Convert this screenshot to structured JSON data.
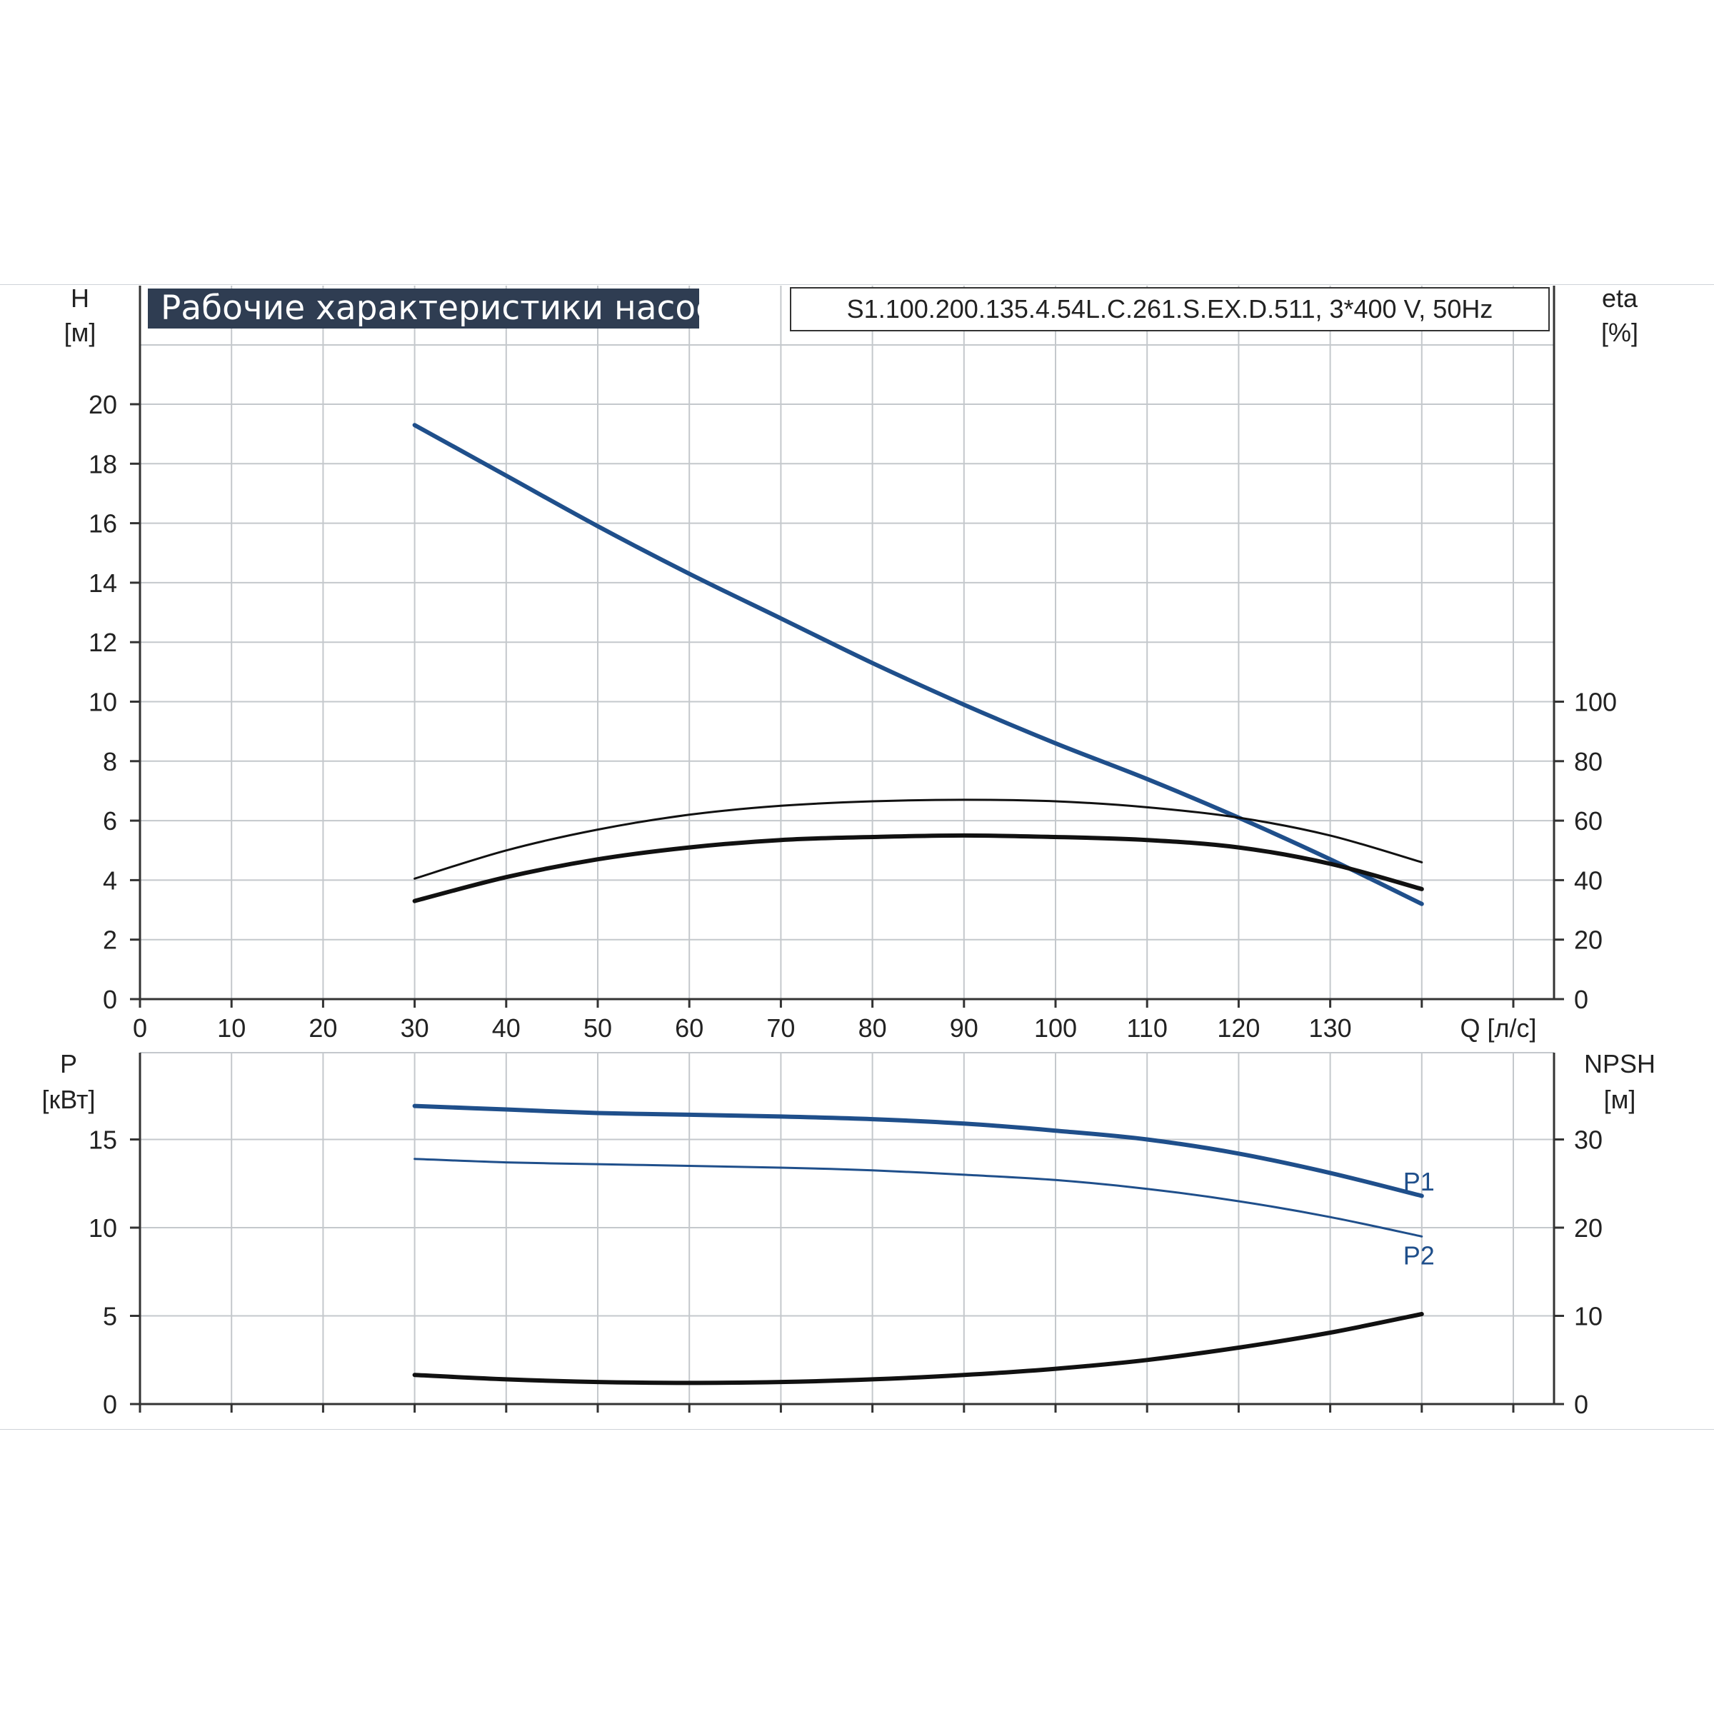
{
  "title": "Рабочие характеристики насоса",
  "model": "S1.100.200.135.4.54L.C.261.S.EX.D.511, 3*400 V, 50Hz",
  "colors": {
    "blue": "#1f4f8b",
    "black": "#111111",
    "grid": "#c4c8cc",
    "title_bg": "#2f3d52"
  },
  "chart_data": [
    {
      "type": "line",
      "name": "upper",
      "y_left_label": [
        "H",
        "[м]"
      ],
      "y_right_label": [
        "eta",
        "[%]"
      ],
      "x_label": "Q [л/с]",
      "xlim": [
        0,
        155
      ],
      "x_ticks": [
        0,
        10,
        20,
        30,
        40,
        50,
        60,
        70,
        80,
        90,
        100,
        110,
        120,
        130
      ],
      "ylim_left": [
        0,
        22
      ],
      "y_ticks_left": [
        0,
        2,
        4,
        6,
        8,
        10,
        12,
        14,
        16,
        18,
        20
      ],
      "ylim_right": [
        0,
        220
      ],
      "y_ticks_right": [
        0,
        20,
        40,
        60,
        80,
        100
      ],
      "grid": true,
      "series": [
        {
          "axis": "left",
          "color": "#1f4f8b",
          "width": 6,
          "x": [
            30,
            40,
            50,
            60,
            70,
            80,
            90,
            100,
            110,
            120,
            130,
            140
          ],
          "y": [
            19.3,
            17.6,
            15.9,
            14.3,
            12.8,
            11.3,
            9.9,
            8.6,
            7.4,
            6.1,
            4.7,
            3.2
          ]
        },
        {
          "axis": "right",
          "color": "#111111",
          "width": 3,
          "x": [
            30,
            40,
            50,
            60,
            70,
            80,
            90,
            100,
            110,
            120,
            130,
            140
          ],
          "y": [
            40.5,
            50,
            57,
            62,
            65,
            66.5,
            67,
            66.5,
            64.5,
            61,
            55,
            46
          ]
        },
        {
          "axis": "right",
          "color": "#111111",
          "width": 6,
          "x": [
            30,
            40,
            50,
            60,
            70,
            80,
            90,
            100,
            110,
            120,
            130,
            140
          ],
          "y": [
            33,
            41,
            47,
            51,
            53.5,
            54.5,
            55,
            54.5,
            53.5,
            51,
            45.5,
            37
          ]
        }
      ]
    },
    {
      "type": "line",
      "name": "lower",
      "y_left_label": [
        "P",
        "[кВт]"
      ],
      "y_right_label": [
        "NPSH",
        "[м]"
      ],
      "xlim": [
        0,
        155
      ],
      "ylim_left": [
        0,
        20
      ],
      "y_ticks_left": [
        0,
        5,
        10,
        15
      ],
      "ylim_right": [
        0,
        40
      ],
      "y_ticks_right": [
        0,
        10,
        20,
        30
      ],
      "grid": true,
      "series": [
        {
          "name": "P1",
          "axis": "left",
          "color": "#1f4f8b",
          "width": 6,
          "x": [
            30,
            40,
            50,
            60,
            70,
            80,
            90,
            100,
            110,
            120,
            130,
            140
          ],
          "y": [
            16.9,
            16.7,
            16.5,
            16.4,
            16.3,
            16.15,
            15.9,
            15.5,
            15.0,
            14.2,
            13.1,
            11.8
          ]
        },
        {
          "name": "P2",
          "axis": "left",
          "color": "#1f4f8b",
          "width": 3,
          "x": [
            30,
            40,
            50,
            60,
            70,
            80,
            90,
            100,
            110,
            120,
            130,
            140
          ],
          "y": [
            13.9,
            13.7,
            13.6,
            13.5,
            13.4,
            13.25,
            13.0,
            12.7,
            12.2,
            11.5,
            10.6,
            9.5
          ]
        },
        {
          "axis": "right",
          "color": "#111111",
          "width": 6,
          "x": [
            30,
            40,
            50,
            60,
            70,
            80,
            90,
            100,
            110,
            120,
            130,
            140
          ],
          "y": [
            3.3,
            2.8,
            2.5,
            2.4,
            2.5,
            2.8,
            3.3,
            4.0,
            5.0,
            6.4,
            8.1,
            10.2
          ]
        }
      ],
      "annotations": [
        {
          "text": "P1",
          "x": 140,
          "y": 12.6
        },
        {
          "text": "P2",
          "x": 140,
          "y": 8.4
        }
      ]
    }
  ]
}
